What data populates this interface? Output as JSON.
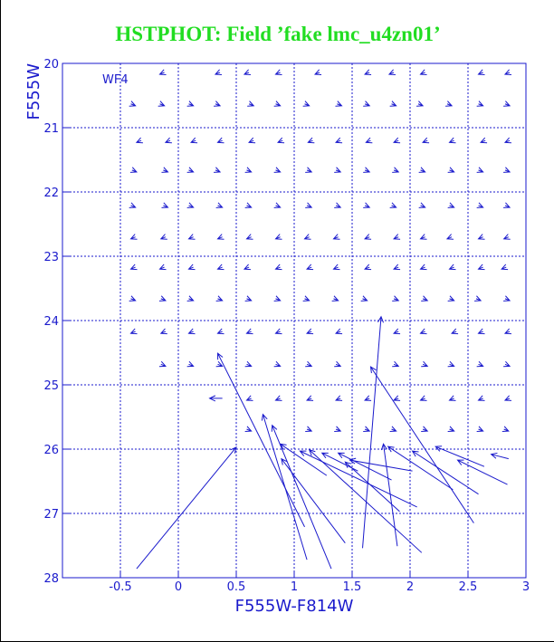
{
  "chart_data": {
    "type": "quiver",
    "title": "HSTPHOT: Field ’fake lmc_u4zn01’",
    "annotation": "WF4",
    "x_label": "F555W-F814W",
    "y_label": "F555W",
    "color": "#1a1acc",
    "title_color": "#22dd22",
    "grid": true,
    "y_inverted": true,
    "xlim": [
      -1,
      3
    ],
    "ylim": [
      20,
      28
    ],
    "xticks": [
      -0.5,
      0,
      0.5,
      1,
      1.5,
      2,
      2.5,
      3
    ],
    "yticks": [
      20,
      21,
      22,
      23,
      24,
      25,
      26,
      27,
      28
    ],
    "arrows": [
      [
        -0.12,
        20.14,
        -0.16,
        20.17
      ],
      [
        0.36,
        20.14,
        0.32,
        20.17
      ],
      [
        0.61,
        20.14,
        0.57,
        20.17
      ],
      [
        0.88,
        20.14,
        0.84,
        20.17
      ],
      [
        1.22,
        20.14,
        1.18,
        20.17
      ],
      [
        1.65,
        20.14,
        1.61,
        20.17
      ],
      [
        1.86,
        20.14,
        1.82,
        20.17
      ],
      [
        2.13,
        20.14,
        2.09,
        20.17
      ],
      [
        2.63,
        20.14,
        2.59,
        20.17
      ],
      [
        2.86,
        20.14,
        2.82,
        20.17
      ],
      [
        -0.41,
        20.63,
        -0.37,
        20.66
      ],
      [
        -0.16,
        20.63,
        -0.12,
        20.66
      ],
      [
        0.09,
        20.63,
        0.13,
        20.66
      ],
      [
        0.32,
        20.63,
        0.36,
        20.66
      ],
      [
        0.61,
        20.63,
        0.65,
        20.66
      ],
      [
        0.84,
        20.63,
        0.88,
        20.66
      ],
      [
        1.09,
        20.63,
        1.13,
        20.66
      ],
      [
        1.37,
        20.63,
        1.41,
        20.66
      ],
      [
        1.61,
        20.63,
        1.65,
        20.66
      ],
      [
        1.84,
        20.63,
        1.88,
        20.66
      ],
      [
        2.07,
        20.63,
        2.11,
        20.66
      ],
      [
        2.32,
        20.63,
        2.36,
        20.66
      ],
      [
        2.59,
        20.63,
        2.63,
        20.66
      ],
      [
        2.82,
        20.63,
        2.86,
        20.66
      ],
      [
        -0.32,
        21.2,
        -0.36,
        21.23
      ],
      [
        -0.07,
        21.2,
        -0.11,
        21.23
      ],
      [
        0.15,
        21.2,
        0.11,
        21.23
      ],
      [
        0.38,
        21.2,
        0.34,
        21.23
      ],
      [
        0.65,
        21.2,
        0.61,
        21.23
      ],
      [
        0.9,
        21.2,
        0.86,
        21.23
      ],
      [
        1.16,
        21.2,
        1.12,
        21.23
      ],
      [
        1.4,
        21.2,
        1.36,
        21.23
      ],
      [
        1.66,
        21.2,
        1.62,
        21.23
      ],
      [
        1.9,
        21.2,
        1.86,
        21.23
      ],
      [
        2.15,
        21.2,
        2.11,
        21.23
      ],
      [
        2.38,
        21.2,
        2.34,
        21.23
      ],
      [
        2.65,
        21.2,
        2.61,
        21.23
      ],
      [
        2.86,
        21.2,
        2.82,
        21.23
      ],
      [
        -0.4,
        21.66,
        -0.36,
        21.69
      ],
      [
        -0.13,
        21.66,
        -0.09,
        21.69
      ],
      [
        0.09,
        21.66,
        0.13,
        21.69
      ],
      [
        0.32,
        21.66,
        0.36,
        21.69
      ],
      [
        0.59,
        21.66,
        0.63,
        21.69
      ],
      [
        0.84,
        21.66,
        0.88,
        21.69
      ],
      [
        1.11,
        21.66,
        1.15,
        21.69
      ],
      [
        1.36,
        21.66,
        1.4,
        21.69
      ],
      [
        1.61,
        21.66,
        1.65,
        21.69
      ],
      [
        1.86,
        21.66,
        1.9,
        21.69
      ],
      [
        2.09,
        21.66,
        2.13,
        21.69
      ],
      [
        2.34,
        21.66,
        2.38,
        21.69
      ],
      [
        2.59,
        21.66,
        2.63,
        21.69
      ],
      [
        2.82,
        21.66,
        2.86,
        21.69
      ],
      [
        -0.41,
        22.21,
        -0.37,
        22.24
      ],
      [
        -0.13,
        22.21,
        -0.09,
        22.24
      ],
      [
        0.09,
        22.21,
        0.13,
        22.24
      ],
      [
        0.34,
        22.21,
        0.38,
        22.24
      ],
      [
        0.59,
        22.21,
        0.63,
        22.24
      ],
      [
        0.84,
        22.21,
        0.88,
        22.24
      ],
      [
        1.11,
        22.21,
        1.15,
        22.24
      ],
      [
        1.36,
        22.21,
        1.4,
        22.24
      ],
      [
        1.61,
        22.21,
        1.65,
        22.24
      ],
      [
        1.84,
        22.21,
        1.88,
        22.24
      ],
      [
        2.09,
        22.21,
        2.13,
        22.24
      ],
      [
        2.34,
        22.21,
        2.38,
        22.24
      ],
      [
        2.59,
        22.21,
        2.63,
        22.24
      ],
      [
        2.82,
        22.21,
        2.86,
        22.24
      ],
      [
        -0.37,
        22.7,
        -0.41,
        22.73
      ],
      [
        -0.11,
        22.7,
        -0.15,
        22.73
      ],
      [
        0.13,
        22.7,
        0.09,
        22.73
      ],
      [
        0.38,
        22.7,
        0.34,
        22.73
      ],
      [
        0.63,
        22.7,
        0.59,
        22.73
      ],
      [
        0.88,
        22.7,
        0.84,
        22.73
      ],
      [
        1.13,
        22.7,
        1.09,
        22.73
      ],
      [
        1.38,
        22.7,
        1.34,
        22.73
      ],
      [
        1.65,
        22.7,
        1.61,
        22.73
      ],
      [
        1.9,
        22.7,
        1.86,
        22.73
      ],
      [
        2.13,
        22.7,
        2.09,
        22.73
      ],
      [
        2.36,
        22.7,
        2.32,
        22.73
      ],
      [
        2.63,
        22.7,
        2.59,
        22.73
      ],
      [
        2.85,
        22.7,
        2.81,
        22.73
      ],
      [
        -0.37,
        23.17,
        -0.41,
        23.2
      ],
      [
        -0.12,
        23.17,
        -0.16,
        23.2
      ],
      [
        0.13,
        23.17,
        0.09,
        23.2
      ],
      [
        0.38,
        23.17,
        0.34,
        23.2
      ],
      [
        0.61,
        23.17,
        0.57,
        23.2
      ],
      [
        0.88,
        23.17,
        0.84,
        23.2
      ],
      [
        1.15,
        23.17,
        1.11,
        23.2
      ],
      [
        1.38,
        23.17,
        1.34,
        23.2
      ],
      [
        1.65,
        23.17,
        1.61,
        23.2
      ],
      [
        1.9,
        23.17,
        1.86,
        23.2
      ],
      [
        2.13,
        23.17,
        2.09,
        23.2
      ],
      [
        2.38,
        23.17,
        2.34,
        23.2
      ],
      [
        2.63,
        23.17,
        2.59,
        23.2
      ],
      [
        2.83,
        23.17,
        2.79,
        23.2
      ],
      [
        -0.41,
        23.66,
        -0.37,
        23.69
      ],
      [
        -0.15,
        23.66,
        -0.11,
        23.69
      ],
      [
        0.09,
        23.66,
        0.13,
        23.69
      ],
      [
        0.34,
        23.66,
        0.38,
        23.69
      ],
      [
        0.59,
        23.66,
        0.63,
        23.69
      ],
      [
        0.84,
        23.66,
        0.88,
        23.69
      ],
      [
        1.09,
        23.66,
        1.13,
        23.69
      ],
      [
        1.34,
        23.66,
        1.38,
        23.69
      ],
      [
        1.59,
        23.66,
        1.63,
        23.69
      ],
      [
        1.86,
        23.66,
        1.9,
        23.69
      ],
      [
        2.11,
        23.66,
        2.15,
        23.69
      ],
      [
        2.34,
        23.66,
        2.38,
        23.69
      ],
      [
        2.57,
        23.66,
        2.61,
        23.69
      ],
      [
        2.82,
        23.66,
        2.86,
        23.69
      ],
      [
        -0.37,
        24.17,
        -0.41,
        24.2
      ],
      [
        -0.11,
        24.17,
        -0.15,
        24.2
      ],
      [
        0.13,
        24.17,
        0.09,
        24.2
      ],
      [
        0.38,
        24.17,
        0.34,
        24.2
      ],
      [
        0.63,
        24.17,
        0.59,
        24.2
      ],
      [
        0.88,
        24.17,
        0.84,
        24.2
      ],
      [
        1.15,
        24.17,
        1.11,
        24.2
      ],
      [
        1.4,
        24.17,
        1.36,
        24.2
      ],
      [
        1.9,
        24.17,
        1.86,
        24.2
      ],
      [
        2.13,
        24.17,
        2.09,
        24.2
      ],
      [
        2.4,
        24.17,
        2.36,
        24.2
      ],
      [
        2.63,
        24.17,
        2.59,
        24.2
      ],
      [
        2.86,
        24.17,
        2.82,
        24.2
      ],
      [
        -0.15,
        24.68,
        -0.11,
        24.71
      ],
      [
        0.09,
        24.68,
        0.13,
        24.71
      ],
      [
        0.34,
        24.68,
        0.38,
        24.71
      ],
      [
        0.59,
        24.68,
        0.63,
        24.71
      ],
      [
        0.84,
        24.68,
        0.88,
        24.71
      ],
      [
        1.11,
        24.68,
        1.15,
        24.71
      ],
      [
        1.36,
        24.68,
        1.4,
        24.71
      ],
      [
        1.86,
        24.68,
        1.9,
        24.71
      ],
      [
        2.11,
        24.68,
        2.15,
        24.71
      ],
      [
        2.34,
        24.68,
        2.38,
        24.71
      ],
      [
        2.59,
        24.68,
        2.63,
        24.71
      ],
      [
        2.82,
        24.68,
        2.86,
        24.71
      ],
      [
        0.38,
        25.21,
        0.27,
        25.21
      ],
      [
        0.63,
        25.21,
        0.59,
        25.24
      ],
      [
        0.88,
        25.21,
        0.84,
        25.24
      ],
      [
        1.15,
        25.21,
        1.11,
        25.24
      ],
      [
        1.4,
        25.21,
        1.36,
        25.24
      ],
      [
        1.65,
        25.21,
        1.61,
        25.24
      ],
      [
        1.9,
        25.21,
        1.86,
        25.24
      ],
      [
        2.13,
        25.21,
        2.09,
        25.24
      ],
      [
        2.38,
        25.21,
        2.34,
        25.24
      ],
      [
        2.63,
        25.21,
        2.59,
        25.24
      ],
      [
        2.86,
        25.21,
        2.82,
        25.24
      ],
      [
        0.59,
        25.69,
        0.63,
        25.72
      ],
      [
        1.11,
        25.69,
        1.15,
        25.72
      ],
      [
        1.36,
        25.69,
        1.4,
        25.72
      ],
      [
        1.61,
        25.69,
        1.65,
        25.72
      ],
      [
        1.84,
        25.69,
        1.88,
        25.72
      ],
      [
        2.11,
        25.69,
        2.15,
        25.72
      ],
      [
        2.34,
        25.69,
        2.38,
        25.72
      ],
      [
        2.59,
        25.69,
        2.63,
        25.72
      ],
      [
        2.81,
        25.69,
        2.85,
        25.72
      ],
      [
        -0.36,
        27.86,
        0.5,
        25.97
      ],
      [
        1.09,
        27.21,
        0.34,
        24.51
      ],
      [
        1.11,
        27.72,
        0.73,
        25.46
      ],
      [
        1.32,
        27.86,
        0.81,
        25.63
      ],
      [
        1.59,
        27.54,
        1.75,
        23.94
      ],
      [
        2.55,
        27.15,
        1.66,
        24.72
      ],
      [
        1.89,
        27.51,
        1.77,
        25.92
      ],
      [
        2.1,
        27.61,
        1.13,
        26.01
      ],
      [
        2.06,
        26.9,
        1.05,
        26.03
      ],
      [
        1.44,
        27.46,
        0.89,
        26.15
      ],
      [
        2.37,
        26.63,
        1.81,
        25.96
      ],
      [
        2.59,
        26.7,
        2.02,
        26.03
      ],
      [
        2.84,
        26.55,
        2.41,
        26.17
      ],
      [
        2.64,
        26.27,
        2.22,
        25.96
      ],
      [
        1.84,
        26.48,
        1.38,
        26.06
      ],
      [
        2.02,
        26.34,
        1.48,
        26.17
      ],
      [
        1.28,
        26.41,
        0.88,
        25.92
      ],
      [
        1.55,
        26.34,
        1.24,
        26.06
      ],
      [
        1.91,
        26.97,
        1.44,
        26.2
      ],
      [
        2.85,
        26.15,
        2.7,
        26.08
      ]
    ]
  }
}
